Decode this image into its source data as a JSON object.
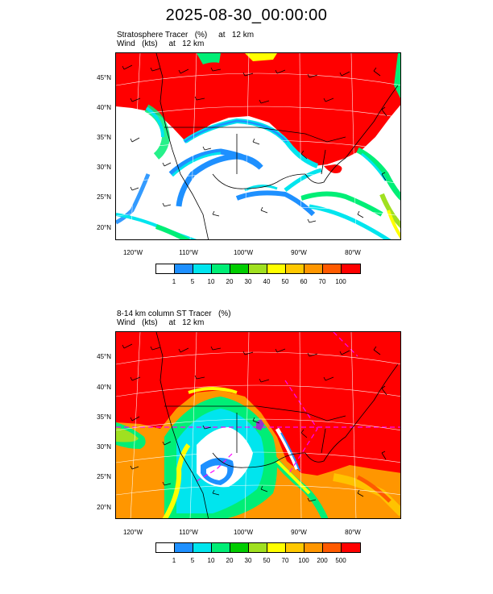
{
  "title": "2025-08-30_00:00:00",
  "panels": [
    {
      "title_line1": "Stratosphere Tracer   (%)     at   12 km",
      "title_line2": "Wind   (kts)     at   12 km",
      "lat_labels": [
        "45°N",
        "40°N",
        "35°N",
        "30°N",
        "25°N",
        "20°N"
      ],
      "lon_labels": [
        "120°W",
        "110°W",
        "100°W",
        "90°W",
        "80°W"
      ],
      "colorbar_labels": [
        "1",
        "5",
        "10",
        "20",
        "30",
        "40",
        "50",
        "60",
        "70",
        "100"
      ],
      "colorbar_colors": [
        "#ffffff",
        "#1e90ff",
        "#00e5ee",
        "#00ee76",
        "#00cd00",
        "#a0e020",
        "#ffff00",
        "#ffc800",
        "#ff9600",
        "#ff5a00",
        "#ff0000"
      ]
    },
    {
      "title_line1": "8-14 km column ST Tracer   (%)",
      "title_line2": "Wind   (kts)     at   12 km",
      "lat_labels": [
        "45°N",
        "40°N",
        "35°N",
        "30°N",
        "25°N",
        "20°N"
      ],
      "lon_labels": [
        "120°W",
        "110°W",
        "100°W",
        "90°W",
        "80°W"
      ],
      "colorbar_labels": [
        "1",
        "5",
        "10",
        "20",
        "30",
        "50",
        "70",
        "100",
        "200",
        "500"
      ],
      "colorbar_colors": [
        "#ffffff",
        "#1e90ff",
        "#00e5ee",
        "#00ee76",
        "#00cd00",
        "#a0e020",
        "#ffff00",
        "#ffc800",
        "#ff9600",
        "#ff5a00",
        "#ff0000"
      ]
    }
  ]
}
